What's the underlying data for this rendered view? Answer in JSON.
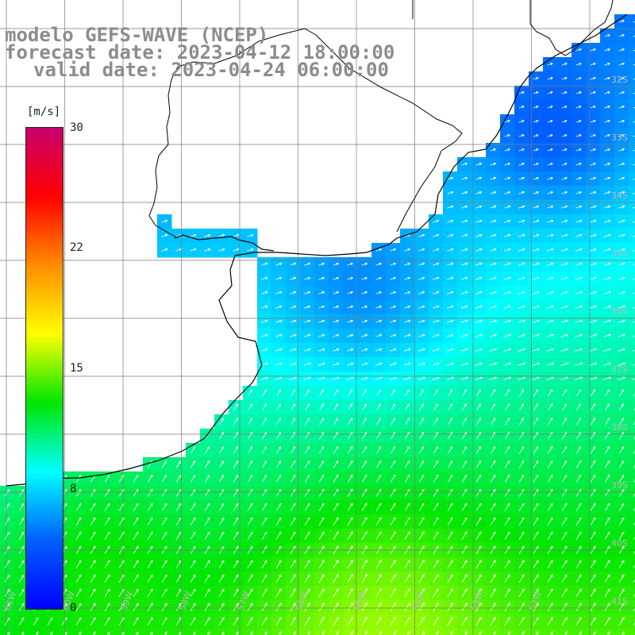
{
  "title": {
    "model": "modelo GEFS-WAVE (NCEP)",
    "forecast": "forecast date: 2023-04-12 18:00:00",
    "valid": "valid date: 2023-04-24 06:00:00"
  },
  "colorbar": {
    "unit": "[m/s]",
    "min": 0,
    "max": 30,
    "ticks": [
      "30",
      "22",
      "15",
      "8",
      "0"
    ],
    "gradient_colors": [
      "#c8006e",
      "#ff0000",
      "#ff8c00",
      "#ffff00",
      "#00e600",
      "#00ffff",
      "#0060ff",
      "#0000ff"
    ]
  },
  "map": {
    "lat_labels": [
      "32S",
      "33S",
      "34S",
      "35S",
      "36S",
      "37S",
      "38S",
      "39S",
      "40S",
      "41S"
    ],
    "lon_labels": [
      "61W",
      "60W",
      "59W",
      "58W",
      "57W",
      "56W",
      "55W",
      "54W",
      "53W",
      "52W"
    ],
    "wind_direction": "from south-west",
    "colors": {
      "land": "#ffffff",
      "coast": "#000000",
      "grid": "#7a7a7a",
      "arrow": "#ffffff"
    }
  }
}
